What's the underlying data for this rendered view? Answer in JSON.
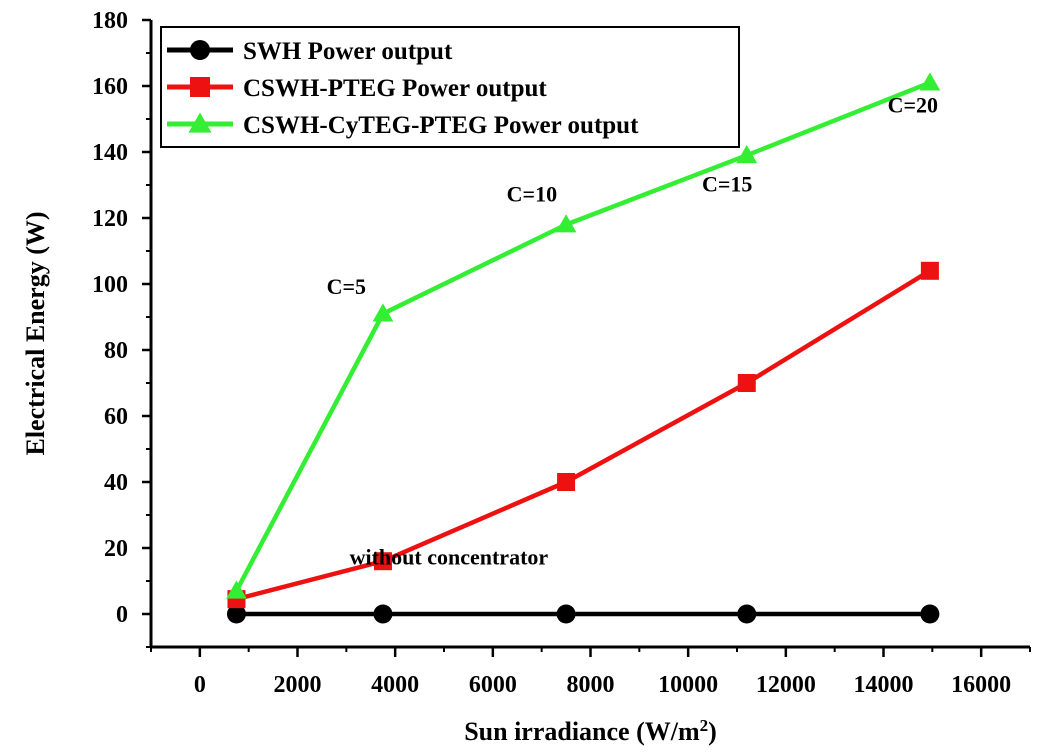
{
  "chart_data": {
    "type": "line",
    "xlabel": "Sun irradiance (W/m",
    "xlabel_sup": "2",
    "xlabel_suffix": ")",
    "ylabel": "Electrical Energy (W)",
    "xlim": [
      -1000,
      17000
    ],
    "ylim": [
      -10,
      180
    ],
    "xticks": [
      0,
      2000,
      4000,
      6000,
      8000,
      10000,
      12000,
      14000,
      16000
    ],
    "yticks": [
      0,
      20,
      40,
      60,
      80,
      100,
      120,
      140,
      160,
      180
    ],
    "legend_position": "top-left",
    "series": [
      {
        "name": "SWH Power output",
        "color": "#000000",
        "marker": "circle",
        "x": [
          750,
          3750,
          7500,
          11200,
          14950
        ],
        "y": [
          0,
          0,
          0,
          0,
          0
        ]
      },
      {
        "name": "CSWH-PTEG Power output",
        "color": "#ee1111",
        "marker": "square",
        "x": [
          750,
          3750,
          7500,
          11200,
          14950
        ],
        "y": [
          4.5,
          16,
          40,
          70,
          104
        ]
      },
      {
        "name": "CSWH-CyTEG-PTEG Power output",
        "color": "#33ee33",
        "marker": "triangle",
        "x": [
          750,
          3750,
          7500,
          11200,
          14950
        ],
        "y": [
          7,
          91,
          118,
          139,
          161
        ]
      }
    ],
    "annotations": [
      {
        "text": "without concentrator",
        "x": 5100,
        "y": 15
      },
      {
        "text": "C=5",
        "x": 3000,
        "y": 97
      },
      {
        "text": "C=10",
        "x": 6800,
        "y": 125
      },
      {
        "text": "C=15",
        "x": 10800,
        "y": 128
      },
      {
        "text": "C=20",
        "x": 14600,
        "y": 152
      }
    ]
  }
}
